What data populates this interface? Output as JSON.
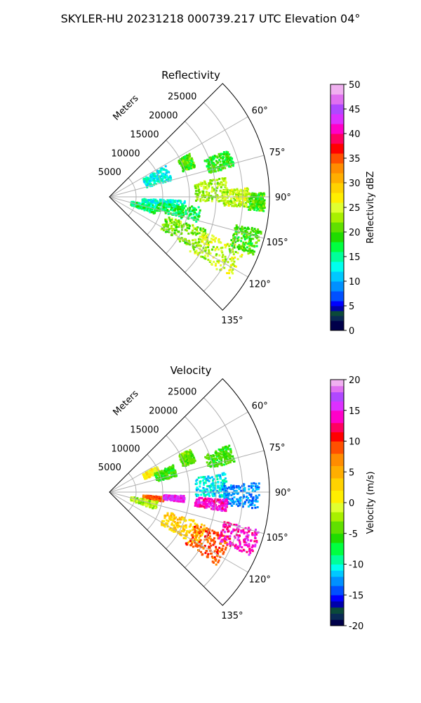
{
  "figure": {
    "title": "SKYLER-HU  20231218  000739.217 UTC Elevation 04°"
  },
  "chart_data": [
    {
      "type": "heatmap",
      "title": "Reflectivity",
      "projection": "polar-sector",
      "theta_range_deg": [
        45,
        135
      ],
      "theta_ticks": [
        "60°",
        "75°",
        "90°",
        "105°",
        "120°",
        "135°"
      ],
      "r_range_m": [
        0,
        30000
      ],
      "r_label": "Meters",
      "r_ticks": [
        "5000",
        "10000",
        "15000",
        "20000",
        "25000"
      ],
      "colorbar": {
        "label": "Reflectivity dBZ",
        "range": [
          0,
          50
        ],
        "ticks": [
          "0",
          "5",
          "10",
          "15",
          "20",
          "25",
          "30",
          "35",
          "40",
          "45",
          "50"
        ]
      },
      "echo_regions": [
        {
          "theta": [
            61,
            70
          ],
          "r": [
            14500,
            17000
          ],
          "value": 20
        },
        {
          "theta": [
            68,
            76
          ],
          "r": [
            19000,
            24000
          ],
          "value": 19
        },
        {
          "theta": [
            60,
            74
          ],
          "r": [
            7000,
            12000
          ],
          "value": 13
        },
        {
          "theta": [
            80,
            92
          ],
          "r": [
            16000,
            22000
          ],
          "value": 23
        },
        {
          "theta": [
            86,
            94
          ],
          "r": [
            21000,
            26000
          ],
          "value": 24
        },
        {
          "theta": [
            88,
            95
          ],
          "r": [
            26000,
            29000
          ],
          "value": 20
        },
        {
          "theta": [
            92,
            99
          ],
          "r": [
            6000,
            14000
          ],
          "value": 13
        },
        {
          "theta": [
            96,
            106
          ],
          "r": [
            9000,
            17000
          ],
          "value": 17
        },
        {
          "theta": [
            100,
            110
          ],
          "r": [
            4000,
            9000
          ],
          "value": 16
        },
        {
          "theta": [
            108,
            122
          ],
          "r": [
            11000,
            19000
          ],
          "value": 22
        },
        {
          "theta": [
            110,
            124
          ],
          "r": [
            18000,
            27000
          ],
          "value": 24
        },
        {
          "theta": [
            102,
            112
          ],
          "r": [
            24000,
            29000
          ],
          "value": 20
        }
      ]
    },
    {
      "type": "heatmap",
      "title": "Velocity",
      "projection": "polar-sector",
      "theta_range_deg": [
        45,
        135
      ],
      "theta_ticks": [
        "60°",
        "75°",
        "90°",
        "105°",
        "120°",
        "135°"
      ],
      "r_range_m": [
        0,
        30000
      ],
      "r_label": "Meters",
      "r_ticks": [
        "5000",
        "10000",
        "15000",
        "20000",
        "25000"
      ],
      "colorbar": {
        "label": "Velocity (m/s)",
        "range": [
          -20,
          20
        ],
        "ticks": [
          "-20",
          "-15",
          "-10",
          "-5",
          "0",
          "5",
          "10",
          "15",
          "20"
        ]
      },
      "echo_regions": [
        {
          "theta": [
            61,
            70
          ],
          "r": [
            14500,
            17000
          ],
          "value": -4
        },
        {
          "theta": [
            68,
            76
          ],
          "r": [
            19000,
            24000
          ],
          "value": -5
        },
        {
          "theta": [
            60,
            68
          ],
          "r": [
            7000,
            10000
          ],
          "value": 1
        },
        {
          "theta": [
            66,
            76
          ],
          "r": [
            9000,
            13000
          ],
          "value": -5
        },
        {
          "theta": [
            80,
            92
          ],
          "r": [
            16000,
            22000
          ],
          "value": -11
        },
        {
          "theta": [
            86,
            96
          ],
          "r": [
            21000,
            28000
          ],
          "value": -13
        },
        {
          "theta": [
            94,
            99
          ],
          "r": [
            6000,
            10000
          ],
          "value": 9
        },
        {
          "theta": [
            92,
            97
          ],
          "r": [
            10000,
            14000
          ],
          "value": 15
        },
        {
          "theta": [
            93,
            99
          ],
          "r": [
            16000,
            22000
          ],
          "value": 14
        },
        {
          "theta": [
            100,
            110
          ],
          "r": [
            4000,
            9000
          ],
          "value": -2
        },
        {
          "theta": [
            108,
            122
          ],
          "r": [
            11000,
            19000
          ],
          "value": 3
        },
        {
          "theta": [
            110,
            124
          ],
          "r": [
            17000,
            24000
          ],
          "value": 9
        },
        {
          "theta": [
            104,
            114
          ],
          "r": [
            22000,
            29000
          ],
          "value": 14
        }
      ]
    }
  ]
}
